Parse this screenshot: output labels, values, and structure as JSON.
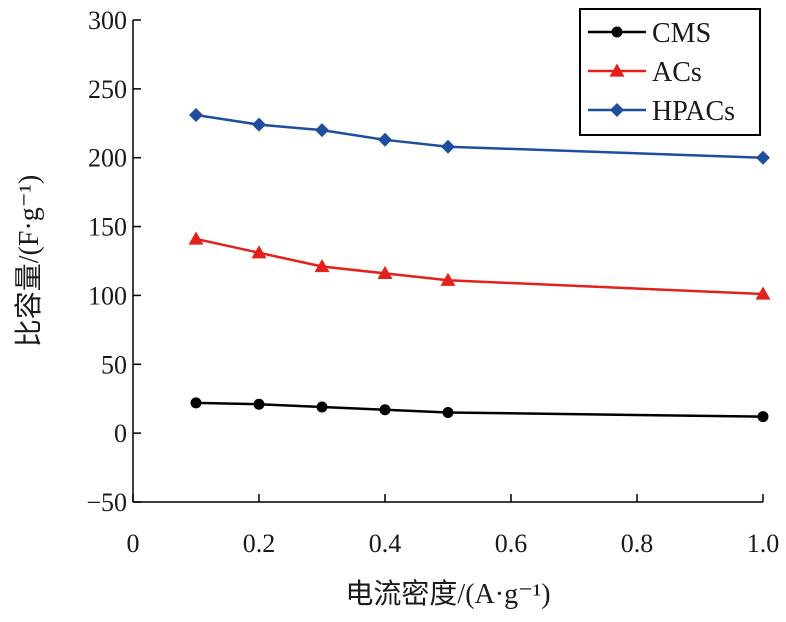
{
  "chart_data": {
    "type": "line",
    "title": "",
    "xlabel": "电流密度/(A·g⁻¹)",
    "ylabel": "比容量/(F·g⁻¹)",
    "xlim": [
      0,
      1.0
    ],
    "ylim": [
      -50,
      300
    ],
    "x_ticks": [
      0,
      0.2,
      0.4,
      0.6,
      0.8,
      1.0
    ],
    "x_tick_labels": [
      "0",
      "0.2",
      "0.4",
      "0.6",
      "0.8",
      "1.0"
    ],
    "y_ticks": [
      -50,
      0,
      50,
      100,
      150,
      200,
      250,
      300
    ],
    "y_tick_labels": [
      "−50",
      "0",
      "50",
      "100",
      "150",
      "200",
      "250",
      "300"
    ],
    "legend_position": "top-right",
    "grid": false,
    "x": [
      0.1,
      0.2,
      0.3,
      0.4,
      0.5,
      1.0
    ],
    "series": [
      {
        "name": "CMS",
        "marker": "circle",
        "color": "#000000",
        "values": [
          22,
          21,
          19,
          17,
          15,
          12
        ]
      },
      {
        "name": "ACs",
        "marker": "triangle",
        "color": "#e4201b",
        "values": [
          141,
          131,
          121,
          116,
          111,
          101
        ]
      },
      {
        "name": "HPACs",
        "marker": "diamond",
        "color": "#1f4e9e",
        "values": [
          231,
          224,
          220,
          213,
          208,
          200
        ]
      }
    ]
  }
}
